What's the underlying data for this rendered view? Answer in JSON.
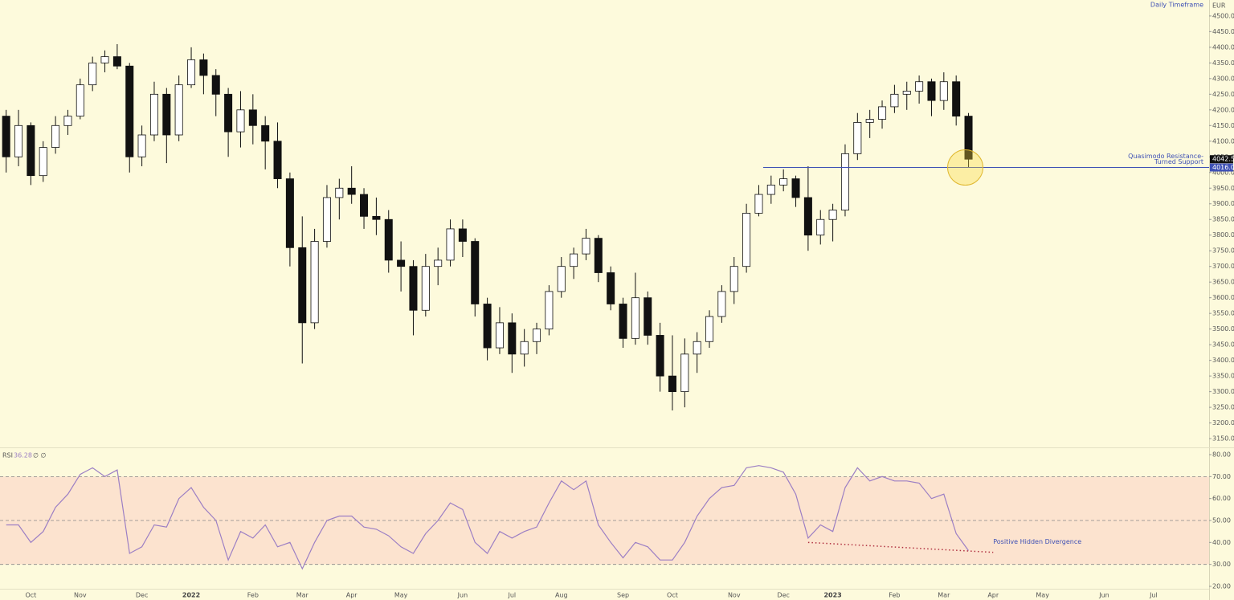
{
  "chart_data": [
    {
      "type": "candlestick",
      "currency": "EUR",
      "timeframe": "Daily Timeframe",
      "categories": [
        null,
        null,
        "Oct",
        null,
        null,
        null,
        "Nov",
        null,
        null,
        null,
        null,
        "Dec",
        null,
        null,
        null,
        "2022",
        null,
        null,
        null,
        null,
        "Feb",
        null,
        null,
        null,
        "Mar",
        null,
        null,
        null,
        "Apr",
        null,
        null,
        null,
        "May",
        null,
        null,
        null,
        null,
        "Jun",
        null,
        null,
        null,
        "Jul",
        null,
        null,
        null,
        "Aug",
        null,
        null,
        null,
        null,
        "Sep",
        null,
        null,
        null,
        "Oct",
        null,
        null,
        null,
        null,
        "Nov",
        null,
        null,
        null,
        "Dec",
        null,
        null,
        null,
        "2023",
        null,
        null,
        null,
        null,
        "Feb",
        null,
        null,
        null,
        "Mar",
        null,
        null,
        null,
        "Apr",
        null,
        null,
        null,
        "May",
        null,
        null,
        null,
        null,
        "Jun",
        null,
        null,
        null,
        "Jul",
        null,
        null,
        null,
        null
      ],
      "open": [
        4180,
        4050,
        4150,
        3990,
        4080,
        4150,
        4180,
        4280,
        4350,
        4370,
        4340,
        4050,
        4120,
        4250,
        4120,
        4280,
        4360,
        4310,
        4250,
        4130,
        4200,
        4150,
        4100,
        3980,
        3760,
        3520,
        3780,
        3920,
        3950,
        3930,
        3860,
        3850,
        3720,
        3700,
        3560,
        3700,
        3720,
        3820,
        3780,
        3580,
        3440,
        3520,
        3420,
        3460,
        3500,
        3620,
        3700,
        3740,
        3790,
        3680,
        3580,
        3470,
        3600,
        3480,
        3350,
        3300,
        3420,
        3460,
        3540,
        3620,
        3700,
        3870,
        3930,
        3960,
        3980,
        3920,
        3800,
        3850,
        3880,
        4060,
        4160,
        4170,
        4210,
        4250,
        4260,
        4290,
        4230,
        4290,
        4180,
        null,
        null,
        null,
        null,
        null,
        null,
        null,
        null,
        null,
        null,
        null,
        null,
        null,
        null,
        null,
        null,
        null,
        null,
        null
      ],
      "high": [
        4200,
        4200,
        4160,
        4100,
        4180,
        4200,
        4300,
        4370,
        4390,
        4410,
        4350,
        4150,
        4290,
        4270,
        4310,
        4400,
        4380,
        4330,
        4270,
        4260,
        4250,
        4180,
        4160,
        4000,
        3860,
        3820,
        3960,
        3980,
        4020,
        3950,
        3920,
        3880,
        3780,
        3720,
        3740,
        3760,
        3850,
        3850,
        3790,
        3600,
        3570,
        3550,
        3500,
        3520,
        3640,
        3730,
        3760,
        3820,
        3800,
        3700,
        3600,
        3680,
        3620,
        3520,
        3480,
        3470,
        3490,
        3560,
        3640,
        3730,
        3900,
        3960,
        3990,
        4010,
        3990,
        4020,
        3880,
        3900,
        4090,
        4190,
        4200,
        4230,
        4280,
        4290,
        4310,
        4300,
        4320,
        4310,
        4190,
        null,
        null,
        null,
        null,
        null,
        null,
        null,
        null,
        null,
        null,
        null,
        null,
        null,
        null,
        null,
        null,
        null,
        null,
        null
      ],
      "low": [
        4000,
        4020,
        3960,
        3970,
        4060,
        4120,
        4170,
        4260,
        4320,
        4330,
        4000,
        4020,
        4100,
        4030,
        4100,
        4270,
        4250,
        4180,
        4050,
        4080,
        4090,
        4010,
        3950,
        3700,
        3390,
        3500,
        3760,
        3850,
        3900,
        3820,
        3800,
        3680,
        3620,
        3480,
        3540,
        3640,
        3700,
        3730,
        3540,
        3400,
        3420,
        3360,
        3380,
        3420,
        3480,
        3600,
        3660,
        3720,
        3650,
        3560,
        3440,
        3450,
        3450,
        3300,
        3240,
        3250,
        3360,
        3440,
        3520,
        3580,
        3680,
        3860,
        3900,
        3940,
        3890,
        3750,
        3770,
        3780,
        3860,
        4040,
        4110,
        4140,
        4190,
        4200,
        4220,
        4180,
        4200,
        4150,
        4016,
        null,
        null,
        null,
        null,
        null,
        null,
        null,
        null,
        null,
        null,
        null,
        null,
        null,
        null,
        null,
        null,
        null,
        null,
        null
      ],
      "close": [
        4050,
        4150,
        3990,
        4080,
        4150,
        4180,
        4280,
        4350,
        4370,
        4340,
        4050,
        4120,
        4250,
        4120,
        4280,
        4360,
        4310,
        4250,
        4130,
        4200,
        4150,
        4100,
        3980,
        3760,
        3520,
        3780,
        3920,
        3950,
        3930,
        3860,
        3850,
        3720,
        3700,
        3560,
        3700,
        3720,
        3820,
        3780,
        3580,
        3440,
        3520,
        3420,
        3460,
        3500,
        3620,
        3700,
        3740,
        3790,
        3680,
        3580,
        3470,
        3600,
        3480,
        3350,
        3300,
        3420,
        3460,
        3540,
        3620,
        3700,
        3870,
        3930,
        3960,
        3980,
        3920,
        3800,
        3850,
        3880,
        4060,
        4160,
        4170,
        4210,
        4250,
        4260,
        4290,
        4230,
        4290,
        4180,
        4042.5,
        null,
        null,
        null,
        null,
        null,
        null,
        null,
        null,
        null,
        null,
        null,
        null,
        null,
        null,
        null,
        null,
        null,
        null,
        null
      ],
      "up_color": "#ffffff",
      "down_color": "#111111",
      "wick_color": "#111111",
      "ylim": [
        3122,
        4551
      ],
      "yticks": [
        {
          "value": 3150,
          "label": "3150.0"
        },
        {
          "value": 3200,
          "label": "3200.0"
        },
        {
          "value": 3250,
          "label": "3250.0"
        },
        {
          "value": 3300,
          "label": "3300.0"
        },
        {
          "value": 3350,
          "label": "3350.0"
        },
        {
          "value": 3400,
          "label": "3400.0"
        },
        {
          "value": 3450,
          "label": "3450.0"
        },
        {
          "value": 3500,
          "label": "3500.0"
        },
        {
          "value": 3550,
          "label": "3550.0"
        },
        {
          "value": 3600,
          "label": "3600.0"
        },
        {
          "value": 3650,
          "label": "3650.0"
        },
        {
          "value": 3700,
          "label": "3700.0"
        },
        {
          "value": 3750,
          "label": "3750.0"
        },
        {
          "value": 3800,
          "label": "3800.0"
        },
        {
          "value": 3850,
          "label": "3850.0"
        },
        {
          "value": 3900,
          "label": "3900.0"
        },
        {
          "value": 3950,
          "label": "3950.0"
        },
        {
          "value": 4000,
          "label": "4000.0"
        },
        {
          "value": 4050,
          "label": "4050.0"
        },
        {
          "value": 4100,
          "label": "4100.0"
        },
        {
          "value": 4150,
          "label": "4150.0"
        },
        {
          "value": 4200,
          "label": "4200.0"
        },
        {
          "value": 4250,
          "label": "4250.0"
        },
        {
          "value": 4300,
          "label": "4300.0"
        },
        {
          "value": 4350,
          "label": "4350.0"
        },
        {
          "value": 4400,
          "label": "4400.0"
        },
        {
          "value": 4450,
          "label": "4450.0"
        },
        {
          "value": 4500,
          "label": "4500.0"
        }
      ],
      "support": {
        "value": 4016,
        "label": "4016.0",
        "text": [
          "Quasimodo Resistance-",
          "Turned Support"
        ],
        "color": "#3f51b5"
      }
    },
    {
      "type": "line",
      "name": "RSI",
      "flags": "∅ ∅",
      "color": "#9c7fc4",
      "values": [
        48,
        48,
        40,
        45,
        56,
        62,
        71,
        74,
        70,
        73,
        35,
        38,
        48,
        47,
        60,
        65,
        56,
        50,
        32,
        45,
        42,
        48,
        38,
        40,
        28,
        40,
        50,
        52,
        52,
        47,
        46,
        43,
        38,
        35,
        44,
        50,
        58,
        55,
        40,
        35,
        45,
        42,
        45,
        47,
        58,
        68,
        64,
        68,
        48,
        40,
        33,
        40,
        38,
        32,
        32,
        40,
        52,
        60,
        65,
        66,
        74,
        75,
        74,
        72,
        62,
        42,
        48,
        45,
        65,
        74,
        68,
        70,
        68,
        68,
        67,
        60,
        62,
        44,
        36.28,
        null,
        null,
        null,
        null,
        null,
        null,
        null,
        null,
        null,
        null,
        null,
        null,
        null,
        null,
        null,
        null,
        null,
        null,
        null
      ],
      "ylim": [
        18.9,
        83.3
      ],
      "yticks": [
        {
          "value": 20,
          "label": "20.00"
        },
        {
          "value": 30,
          "label": "30.00"
        },
        {
          "value": 40,
          "label": "40.00"
        },
        {
          "value": 50,
          "label": "50.00"
        },
        {
          "value": 60,
          "label": "60.00"
        },
        {
          "value": 70,
          "label": "70.00"
        },
        {
          "value": 80,
          "label": "80.00"
        }
      ],
      "band": [
        30,
        70
      ],
      "band_color": "#fce3cf",
      "levels": [
        30,
        50,
        70
      ],
      "divergence": {
        "label": "Positive Hidden Divergence",
        "values": [
          40,
          35.5
        ],
        "color": "#b03040"
      }
    }
  ]
}
